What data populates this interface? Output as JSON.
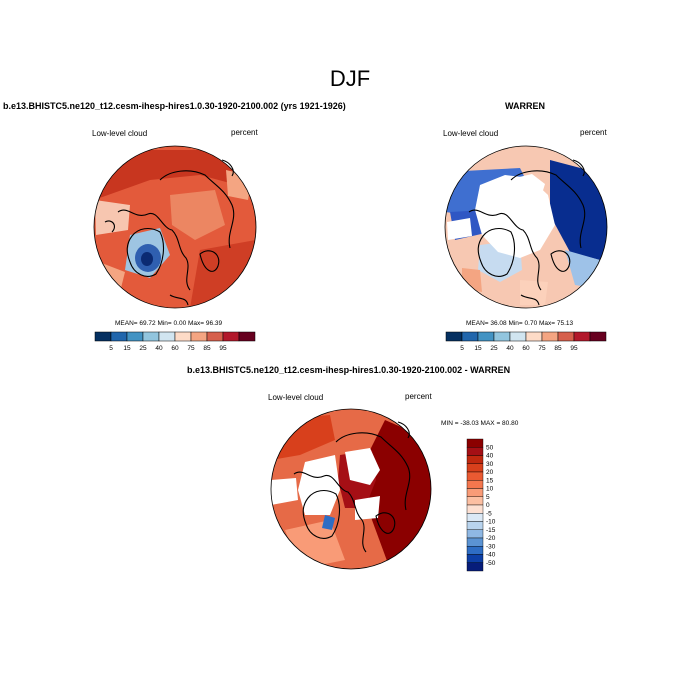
{
  "figure": {
    "title": "DJF"
  },
  "panels": {
    "model": {
      "title": "b.e13.BHISTC5.ne120_t12.cesm-ihesp-hires1.0.30-1920-2100.002 (yrs 1921-1926)",
      "left_label": "Low-level cloud",
      "right_label": "percent",
      "stats": "MEAN=  69.72  Min=   0.00  Max=  96.39"
    },
    "obs": {
      "title": "WARREN",
      "left_label": "Low-level cloud",
      "right_label": "percent",
      "stats": "MEAN=  36.08  Min=   0.70  Max=  75.13"
    },
    "diff": {
      "title": "b.e13.BHISTC5.ne120_t12.cesm-ihesp-hires1.0.30-1920-2100.002 - WARREN",
      "left_label": "Low-level cloud",
      "right_label": "percent",
      "stats": "MIN = -38.03 MAX =  80.80"
    }
  },
  "chart_data": [
    {
      "type": "heatmap",
      "title": "b.e13.BHISTC5.ne120_t12.cesm-ihesp-hires1.0.30-1920-2100.002 (yrs 1921-1926)",
      "variable": "Low-level cloud",
      "units": "percent",
      "projection": "north polar stereographic",
      "mean": 69.72,
      "min": 0.0,
      "max": 96.39,
      "colorbar_levels": [
        5,
        15,
        25,
        40,
        60,
        75,
        85,
        95
      ],
      "colorbar_colors": [
        "#053061",
        "#2166ac",
        "#4393c3",
        "#92c5de",
        "#d1e5f0",
        "#fddbc7",
        "#f4a582",
        "#d6604d",
        "#b2182b",
        "#67001f"
      ]
    },
    {
      "type": "heatmap",
      "title": "WARREN",
      "variable": "Low-level cloud",
      "units": "percent",
      "projection": "north polar stereographic",
      "mean": 36.08,
      "min": 0.7,
      "max": 75.13,
      "colorbar_levels": [
        5,
        15,
        25,
        40,
        60,
        75,
        85,
        95
      ],
      "colorbar_colors": [
        "#053061",
        "#2166ac",
        "#4393c3",
        "#92c5de",
        "#d1e5f0",
        "#fddbc7",
        "#f4a582",
        "#d6604d",
        "#b2182b",
        "#67001f"
      ]
    },
    {
      "type": "heatmap",
      "title": "b.e13.BHISTC5.ne120_t12.cesm-ihesp-hires1.0.30-1920-2100.002 - WARREN",
      "variable": "Low-level cloud",
      "units": "percent",
      "projection": "north polar stereographic",
      "min": -38.03,
      "max": 80.8,
      "colorbar_levels": [
        50,
        40,
        30,
        20,
        15,
        10,
        5,
        0,
        -5,
        -10,
        -15,
        -20,
        -30,
        -40,
        -50
      ],
      "colorbar_colors": [
        "#8b0000",
        "#a50f15",
        "#c0280f",
        "#d8401c",
        "#ea5a32",
        "#f4774e",
        "#f99b77",
        "#fcbfa2",
        "#fde0d2",
        "#dbe9f6",
        "#b9d4ee",
        "#8fb8e4",
        "#5b93d3",
        "#2e6dc4",
        "#0d3fa6",
        "#071d7a"
      ]
    }
  ]
}
